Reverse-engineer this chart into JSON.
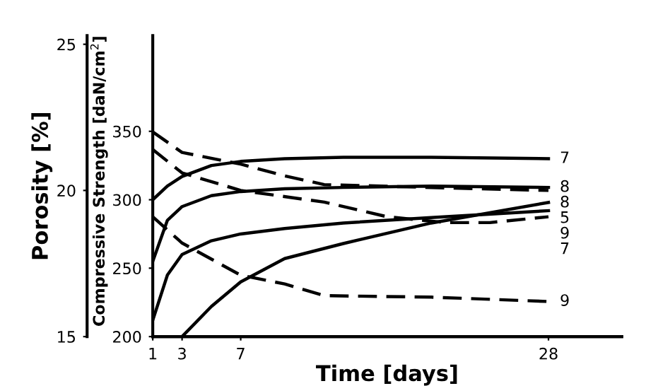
{
  "chart_data": {
    "type": "line",
    "xlabel": "Time [days]",
    "ylabel": "Compressive Strength [daN/cm$^{2}$]",
    "y2label": "Porosity [%]",
    "xlim": [
      1,
      33
    ],
    "xticks": [
      1,
      3,
      7,
      28
    ],
    "ylim": [
      200,
      420
    ],
    "yticks": [
      200,
      250,
      300,
      350
    ],
    "y2lim": [
      15,
      25.3
    ],
    "y2ticks": [
      15,
      20,
      25
    ],
    "grid": false,
    "legend": false,
    "marker": "none",
    "series": [
      {
        "name": "7",
        "color": "#000000",
        "line_style": "solid",
        "x": [
          1,
          2,
          3,
          5,
          7,
          10,
          14,
          20,
          28
        ],
        "values": [
          300,
          310,
          317,
          325,
          328,
          330,
          331,
          331,
          330
        ]
      },
      {
        "name": "8",
        "color": "#000000",
        "line_style": "solid",
        "x": [
          1,
          2,
          3,
          5,
          7,
          10,
          14,
          20,
          28
        ],
        "values": [
          255,
          285,
          295,
          303,
          306,
          308,
          309,
          310,
          309
        ]
      },
      {
        "name": "9",
        "color": "#000000",
        "line_style": "solid",
        "x": [
          1,
          2,
          3,
          5,
          7,
          10,
          14,
          20,
          28
        ],
        "values": [
          212,
          245,
          260,
          270,
          275,
          279,
          283,
          287,
          292
        ]
      },
      {
        "name": "5",
        "color": "#000000",
        "line_style": "solid",
        "x": [
          3,
          5,
          7,
          10,
          14,
          20,
          28
        ],
        "values": [
          200,
          222,
          240,
          257,
          268,
          283,
          298
        ]
      },
      {
        "name": "8",
        "color": "#000000",
        "line_style": "dashed",
        "axis": "y2",
        "x": [
          1,
          3,
          7,
          10,
          12.7,
          20,
          28
        ],
        "values": [
          22.0,
          21.3,
          20.9,
          20.5,
          20.2,
          20.1,
          20.0
        ]
      },
      {
        "name": "7",
        "color": "#000000",
        "line_style": "dashed",
        "axis": "y2",
        "x": [
          1,
          3,
          7,
          12.7,
          17,
          21,
          24,
          28
        ],
        "values": [
          21.4,
          20.6,
          20.0,
          19.6,
          19.1,
          18.9,
          18.9,
          19.1
        ]
      },
      {
        "name": "9",
        "color": "#000000",
        "line_style": "dashed",
        "axis": "y2",
        "x": [
          1,
          3,
          7,
          10,
          12.7,
          20,
          28
        ],
        "values": [
          19.1,
          18.2,
          17.1,
          16.8,
          16.4,
          16.35,
          16.2
        ]
      }
    ]
  }
}
